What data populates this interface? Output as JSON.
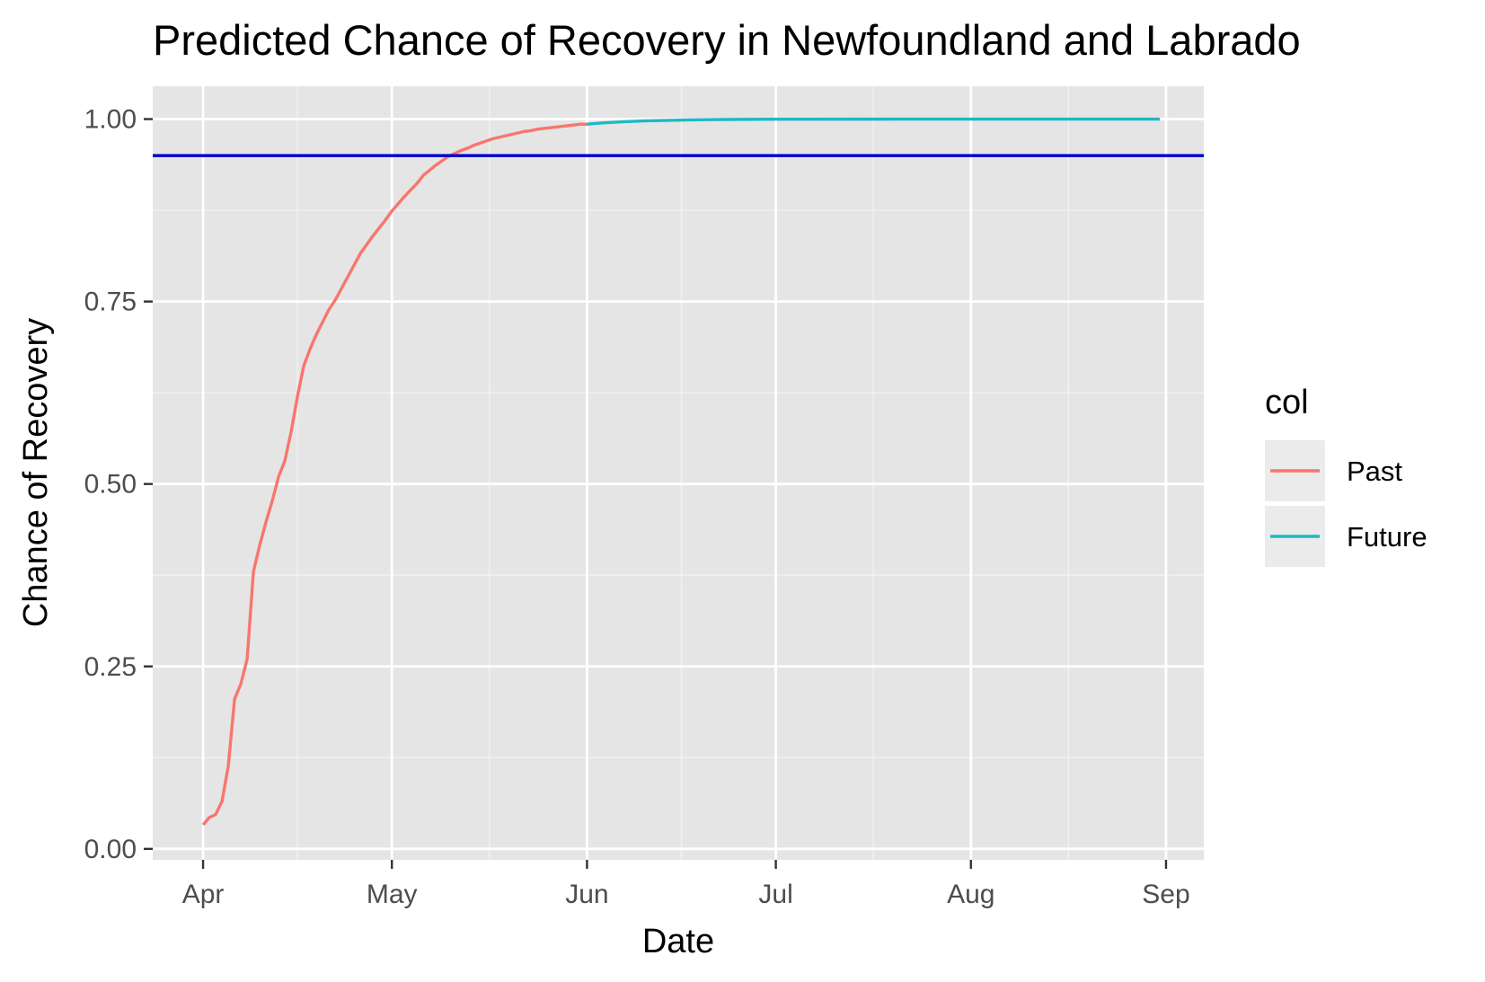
{
  "chart_data": {
    "type": "line",
    "title": "Predicted Chance of Recovery in Newfoundland and Labrado",
    "xlabel": "Date",
    "ylabel": "Chance of Recovery",
    "x_ticks": [
      "Apr",
      "May",
      "Jun",
      "Jul",
      "Aug",
      "Sep"
    ],
    "x_tick_dates": [
      "2020-04-01",
      "2020-05-01",
      "2020-06-01",
      "2020-07-01",
      "2020-08-01",
      "2020-09-01"
    ],
    "xlim": [
      "2020-03-24",
      "2020-09-07"
    ],
    "y_ticks": [
      "0.00",
      "0.25",
      "0.50",
      "0.75",
      "1.00"
    ],
    "ylim": [
      -0.015,
      1.045
    ],
    "grid": true,
    "legend": {
      "title": "col",
      "position": "right"
    },
    "reference_line": {
      "y": 0.95,
      "color": "#0000cc"
    },
    "series": [
      {
        "name": "Past",
        "color": "#f8766d",
        "points": [
          [
            "2020-04-01",
            0.033
          ],
          [
            "2020-04-02",
            0.043
          ],
          [
            "2020-04-03",
            0.047
          ],
          [
            "2020-04-04",
            0.065
          ],
          [
            "2020-04-05",
            0.113
          ],
          [
            "2020-04-06",
            0.205
          ],
          [
            "2020-04-07",
            0.226
          ],
          [
            "2020-04-08",
            0.26
          ],
          [
            "2020-04-09",
            0.38
          ],
          [
            "2020-04-10",
            0.416
          ],
          [
            "2020-04-11",
            0.448
          ],
          [
            "2020-04-12",
            0.477
          ],
          [
            "2020-04-13",
            0.51
          ],
          [
            "2020-04-14",
            0.532
          ],
          [
            "2020-04-15",
            0.572
          ],
          [
            "2020-04-16",
            0.62
          ],
          [
            "2020-04-17",
            0.662
          ],
          [
            "2020-04-18",
            0.685
          ],
          [
            "2020-04-19",
            0.705
          ],
          [
            "2020-04-20",
            0.722
          ],
          [
            "2020-04-21",
            0.739
          ],
          [
            "2020-04-22",
            0.752
          ],
          [
            "2020-04-23",
            0.768
          ],
          [
            "2020-04-24",
            0.784
          ],
          [
            "2020-04-25",
            0.8
          ],
          [
            "2020-04-26",
            0.816
          ],
          [
            "2020-04-27",
            0.828
          ],
          [
            "2020-04-28",
            0.84
          ],
          [
            "2020-04-29",
            0.851
          ],
          [
            "2020-04-30",
            0.862
          ],
          [
            "2020-05-01",
            0.874
          ],
          [
            "2020-05-02",
            0.884
          ],
          [
            "2020-05-03",
            0.894
          ],
          [
            "2020-05-04",
            0.903
          ],
          [
            "2020-05-05",
            0.912
          ],
          [
            "2020-05-06",
            0.923
          ],
          [
            "2020-05-07",
            0.93
          ],
          [
            "2020-05-08",
            0.937
          ],
          [
            "2020-05-09",
            0.943
          ],
          [
            "2020-05-10",
            0.949
          ],
          [
            "2020-05-11",
            0.953
          ],
          [
            "2020-05-12",
            0.957
          ],
          [
            "2020-05-13",
            0.96
          ],
          [
            "2020-05-14",
            0.964
          ],
          [
            "2020-05-15",
            0.967
          ],
          [
            "2020-05-16",
            0.97
          ],
          [
            "2020-05-17",
            0.973
          ],
          [
            "2020-05-18",
            0.975
          ],
          [
            "2020-05-19",
            0.977
          ],
          [
            "2020-05-20",
            0.979
          ],
          [
            "2020-05-21",
            0.981
          ],
          [
            "2020-05-22",
            0.983
          ],
          [
            "2020-05-23",
            0.984
          ],
          [
            "2020-05-24",
            0.986
          ],
          [
            "2020-05-25",
            0.987
          ],
          [
            "2020-05-26",
            0.988
          ],
          [
            "2020-05-27",
            0.989
          ],
          [
            "2020-05-28",
            0.99
          ],
          [
            "2020-05-29",
            0.991
          ],
          [
            "2020-05-30",
            0.992
          ],
          [
            "2020-05-31",
            0.993
          ],
          [
            "2020-06-01",
            0.993
          ]
        ]
      },
      {
        "name": "Future",
        "color": "#1fb8c2",
        "points": [
          [
            "2020-06-01",
            0.993
          ],
          [
            "2020-06-04",
            0.995
          ],
          [
            "2020-06-07",
            0.9965
          ],
          [
            "2020-06-10",
            0.9975
          ],
          [
            "2020-06-15",
            0.9985
          ],
          [
            "2020-06-20",
            0.9992
          ],
          [
            "2020-06-25",
            0.9996
          ],
          [
            "2020-07-01",
            0.9998
          ],
          [
            "2020-07-15",
            0.9999
          ],
          [
            "2020-08-01",
            1.0
          ],
          [
            "2020-08-15",
            1.0
          ],
          [
            "2020-08-31",
            1.0
          ]
        ]
      }
    ]
  }
}
